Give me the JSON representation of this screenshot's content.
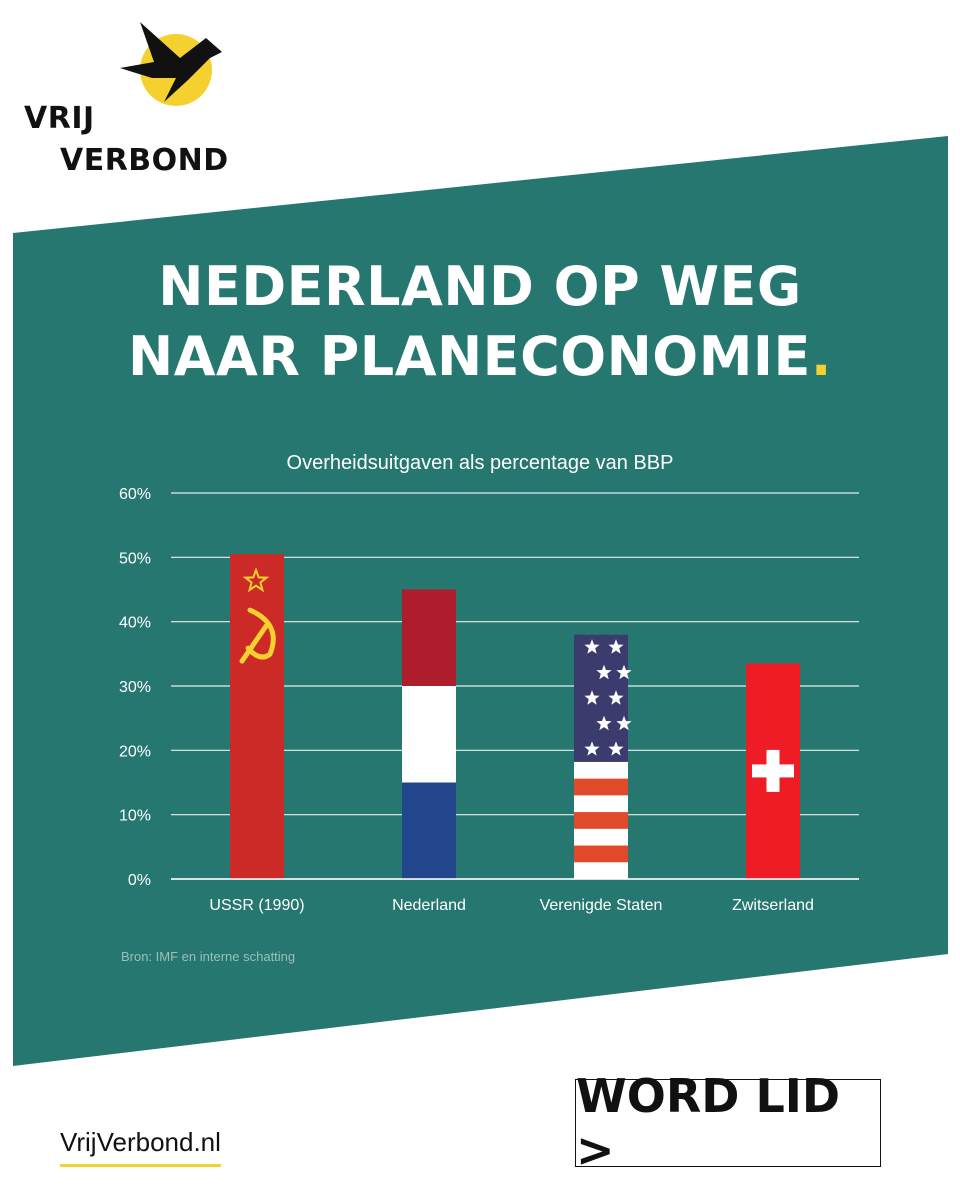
{
  "brand": {
    "line1": "VRIJ",
    "line2": "VERBOND",
    "site": "VrijVerbond.nl"
  },
  "colors": {
    "band": "#257770",
    "accent": "#f5d130",
    "text": "#ffffff",
    "grid": "#e6efee"
  },
  "headline": {
    "line1": "NEDERLAND OP WEG",
    "line2": "NAAR PLANECONOMIE",
    "punct": "."
  },
  "chart_data": {
    "type": "bar",
    "title": "Overheidsuitgaven als percentage van BBP",
    "categories": [
      "USSR (1990)",
      "Nederland",
      "Verenigde Staten",
      "Zwitserland"
    ],
    "values": [
      50.5,
      45,
      38,
      33.5
    ],
    "bar_styles": [
      "ussr-flag",
      "dutch-flag",
      "us-flag",
      "swiss-flag"
    ],
    "ylim": [
      0,
      60
    ],
    "yticks": [
      0,
      10,
      20,
      30,
      40,
      50,
      60
    ],
    "ytick_labels": [
      "0%",
      "10%",
      "20%",
      "30%",
      "40%",
      "50%",
      "60%"
    ],
    "grid": true,
    "xlabel": "",
    "ylabel": ""
  },
  "source": "Bron: IMF en interne schatting",
  "cta": {
    "label": "WORD LID >"
  }
}
